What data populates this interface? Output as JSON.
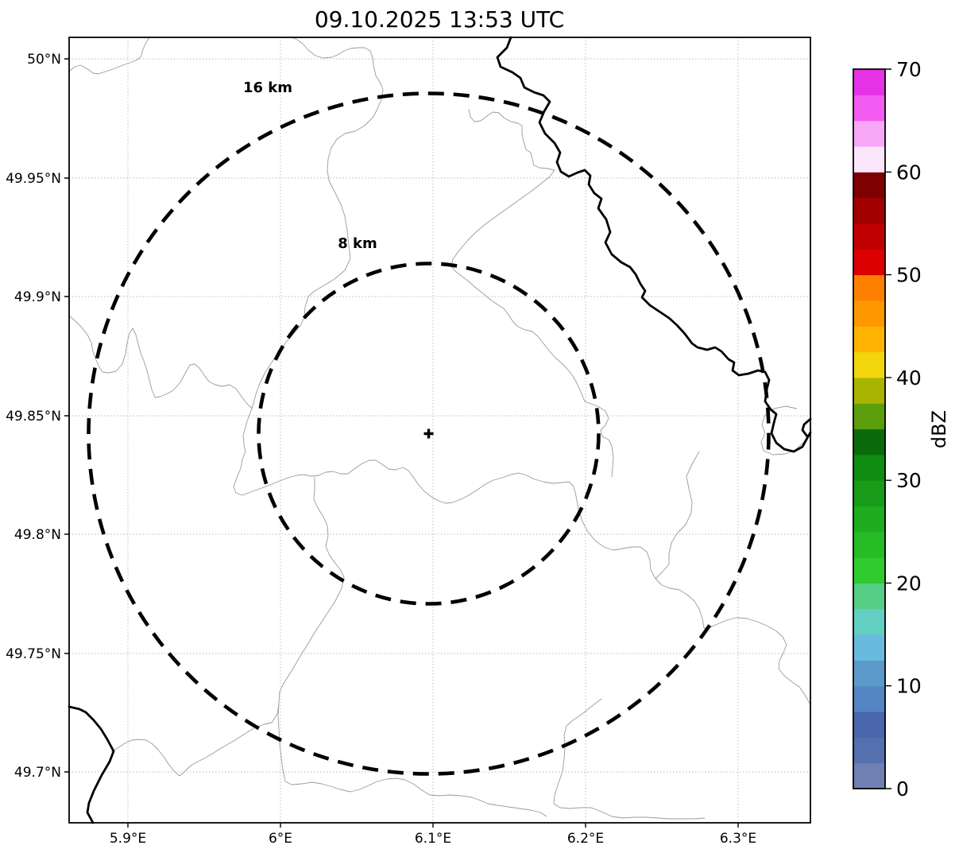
{
  "title": "09.10.2025 13:53 UTC",
  "map": {
    "center_marker_symbol": "+",
    "range_rings": [
      {
        "label": "16 km",
        "radius_km": 16
      },
      {
        "label": "8 km",
        "radius_km": 8
      }
    ]
  },
  "axes": {
    "lat_ticks": [
      "50°N",
      "49.95°N",
      "49.9°N",
      "49.85°N",
      "49.8°N",
      "49.75°N",
      "49.7°N"
    ],
    "lon_ticks": [
      "5.9°E",
      "6°E",
      "6.1°E",
      "6.2°E",
      "6.3°E"
    ]
  },
  "colorbar": {
    "label": "dBZ",
    "min": 0,
    "max": 70,
    "ticks": [
      "0",
      "10",
      "20",
      "30",
      "40",
      "50",
      "60",
      "70"
    ],
    "segment_colors": [
      "#7180B2",
      "#5470AF",
      "#4A66AE",
      "#5585C2",
      "#5C9ACC",
      "#68BADF",
      "#63CFC1",
      "#55CE86",
      "#2FCB2F",
      "#26BC26",
      "#1FAD1F",
      "#199C19",
      "#108C10",
      "#0A6B0A",
      "#5B9E0B",
      "#A9B400",
      "#F2D50C",
      "#FFB300",
      "#FF9800",
      "#FF8000",
      "#DD0000",
      "#C00000",
      "#A30000",
      "#7E0000",
      "#FCE6FC",
      "#F9A8F9",
      "#F25CF2",
      "#E632E6"
    ]
  },
  "chart_data": {
    "type": "heatmap",
    "title": "09.10.2025 13:53 UTC",
    "colorbar_label": "dBZ",
    "colorbar_range": [
      0,
      70
    ],
    "colorbar_tick_step": 10,
    "lon_range_deg_e": [
      5.862,
      6.347
    ],
    "lat_range_deg_n": [
      49.679,
      50.009
    ],
    "radar_center": {
      "lon_deg_e": 6.097,
      "lat_deg_n": 49.843
    },
    "range_rings_km": [
      8,
      16
    ],
    "notes": "no reflectivity echoes visible on map"
  }
}
